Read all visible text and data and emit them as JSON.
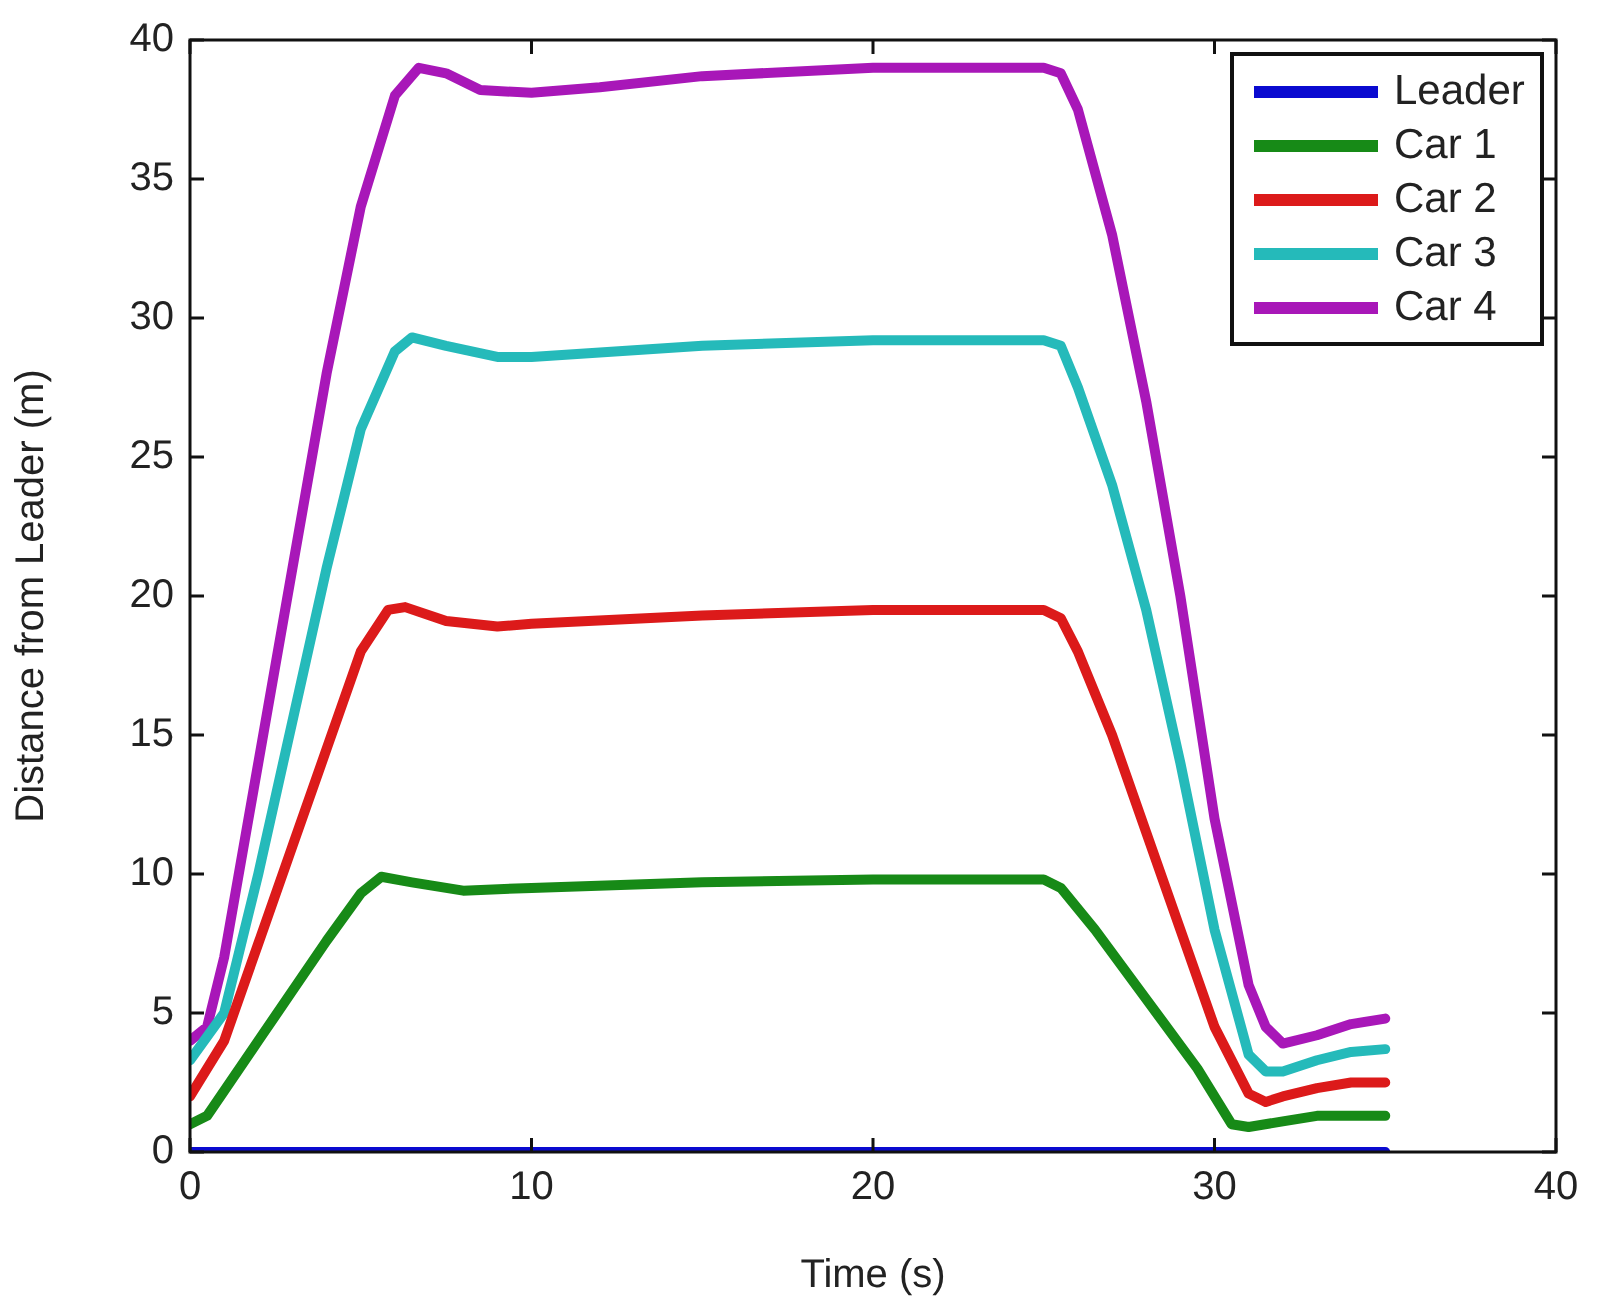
{
  "chart_data": {
    "type": "line",
    "xlabel": "Time (s)",
    "ylabel": "Distance from Leader (m)",
    "xlim": [
      0,
      40
    ],
    "xticks": [
      0,
      10,
      20,
      30,
      40
    ],
    "ylim": [
      0,
      40
    ],
    "yticks": [
      0,
      5,
      10,
      15,
      20,
      25,
      30,
      35,
      40
    ],
    "legend": "top right",
    "marker": "none",
    "line_style": "solid",
    "series": [
      {
        "name": "Leader",
        "color": "#0a0ad0",
        "x": [
          0,
          35
        ],
        "values": [
          0,
          0
        ]
      },
      {
        "name": "Car 1",
        "color": "#178a17",
        "x": [
          0,
          0.5,
          1,
          2,
          3,
          4,
          5,
          5.6,
          6.5,
          8,
          10,
          15,
          20,
          25,
          25.5,
          26.5,
          28,
          29.5,
          30.5,
          31,
          32,
          33,
          35
        ],
        "values": [
          1,
          1.3,
          2.2,
          4,
          5.8,
          7.6,
          9.3,
          9.9,
          9.7,
          9.4,
          9.5,
          9.7,
          9.8,
          9.8,
          9.5,
          8,
          5.5,
          3,
          1,
          0.9,
          1.1,
          1.3,
          1.3
        ]
      },
      {
        "name": "Car 2",
        "color": "#dc1a1a",
        "x": [
          0,
          1,
          2,
          3,
          4,
          5,
          5.8,
          6.3,
          7.5,
          9,
          10,
          15,
          20,
          25,
          25.5,
          26,
          27,
          28,
          29,
          30,
          31,
          31.5,
          32,
          33,
          34,
          35
        ],
        "values": [
          2,
          4,
          7.5,
          11,
          14.5,
          18,
          19.5,
          19.6,
          19.1,
          18.9,
          19,
          19.3,
          19.5,
          19.5,
          19.2,
          18,
          15,
          11.5,
          8,
          4.5,
          2.1,
          1.8,
          2,
          2.3,
          2.5,
          2.5
        ]
      },
      {
        "name": "Car 3",
        "color": "#25baba",
        "x": [
          0,
          1,
          2,
          3,
          4,
          5,
          6,
          6.5,
          7.5,
          9,
          10,
          15,
          20,
          25,
          25.5,
          26,
          27,
          28,
          29,
          30,
          31,
          31.5,
          32,
          33,
          34,
          35
        ],
        "values": [
          3.3,
          5,
          10,
          15.5,
          21,
          26,
          28.8,
          29.3,
          29,
          28.6,
          28.6,
          29,
          29.2,
          29.2,
          29,
          27.5,
          24,
          19.5,
          14,
          8,
          3.5,
          2.9,
          2.9,
          3.3,
          3.6,
          3.7
        ]
      },
      {
        "name": "Car 4",
        "color": "#a817b8",
        "x": [
          0,
          0.5,
          1,
          2,
          3,
          4,
          5,
          6,
          6.7,
          7.5,
          8.5,
          10,
          12,
          15,
          20,
          25,
          25.5,
          26,
          27,
          28,
          29,
          30,
          31,
          31.5,
          32,
          33,
          34,
          35
        ],
        "values": [
          4,
          4.5,
          7,
          14,
          21,
          28,
          34,
          38,
          39,
          38.8,
          38.2,
          38.1,
          38.3,
          38.7,
          39,
          39,
          38.8,
          37.5,
          33,
          27,
          20,
          12,
          6,
          4.5,
          3.9,
          4.2,
          4.6,
          4.8
        ]
      }
    ]
  }
}
